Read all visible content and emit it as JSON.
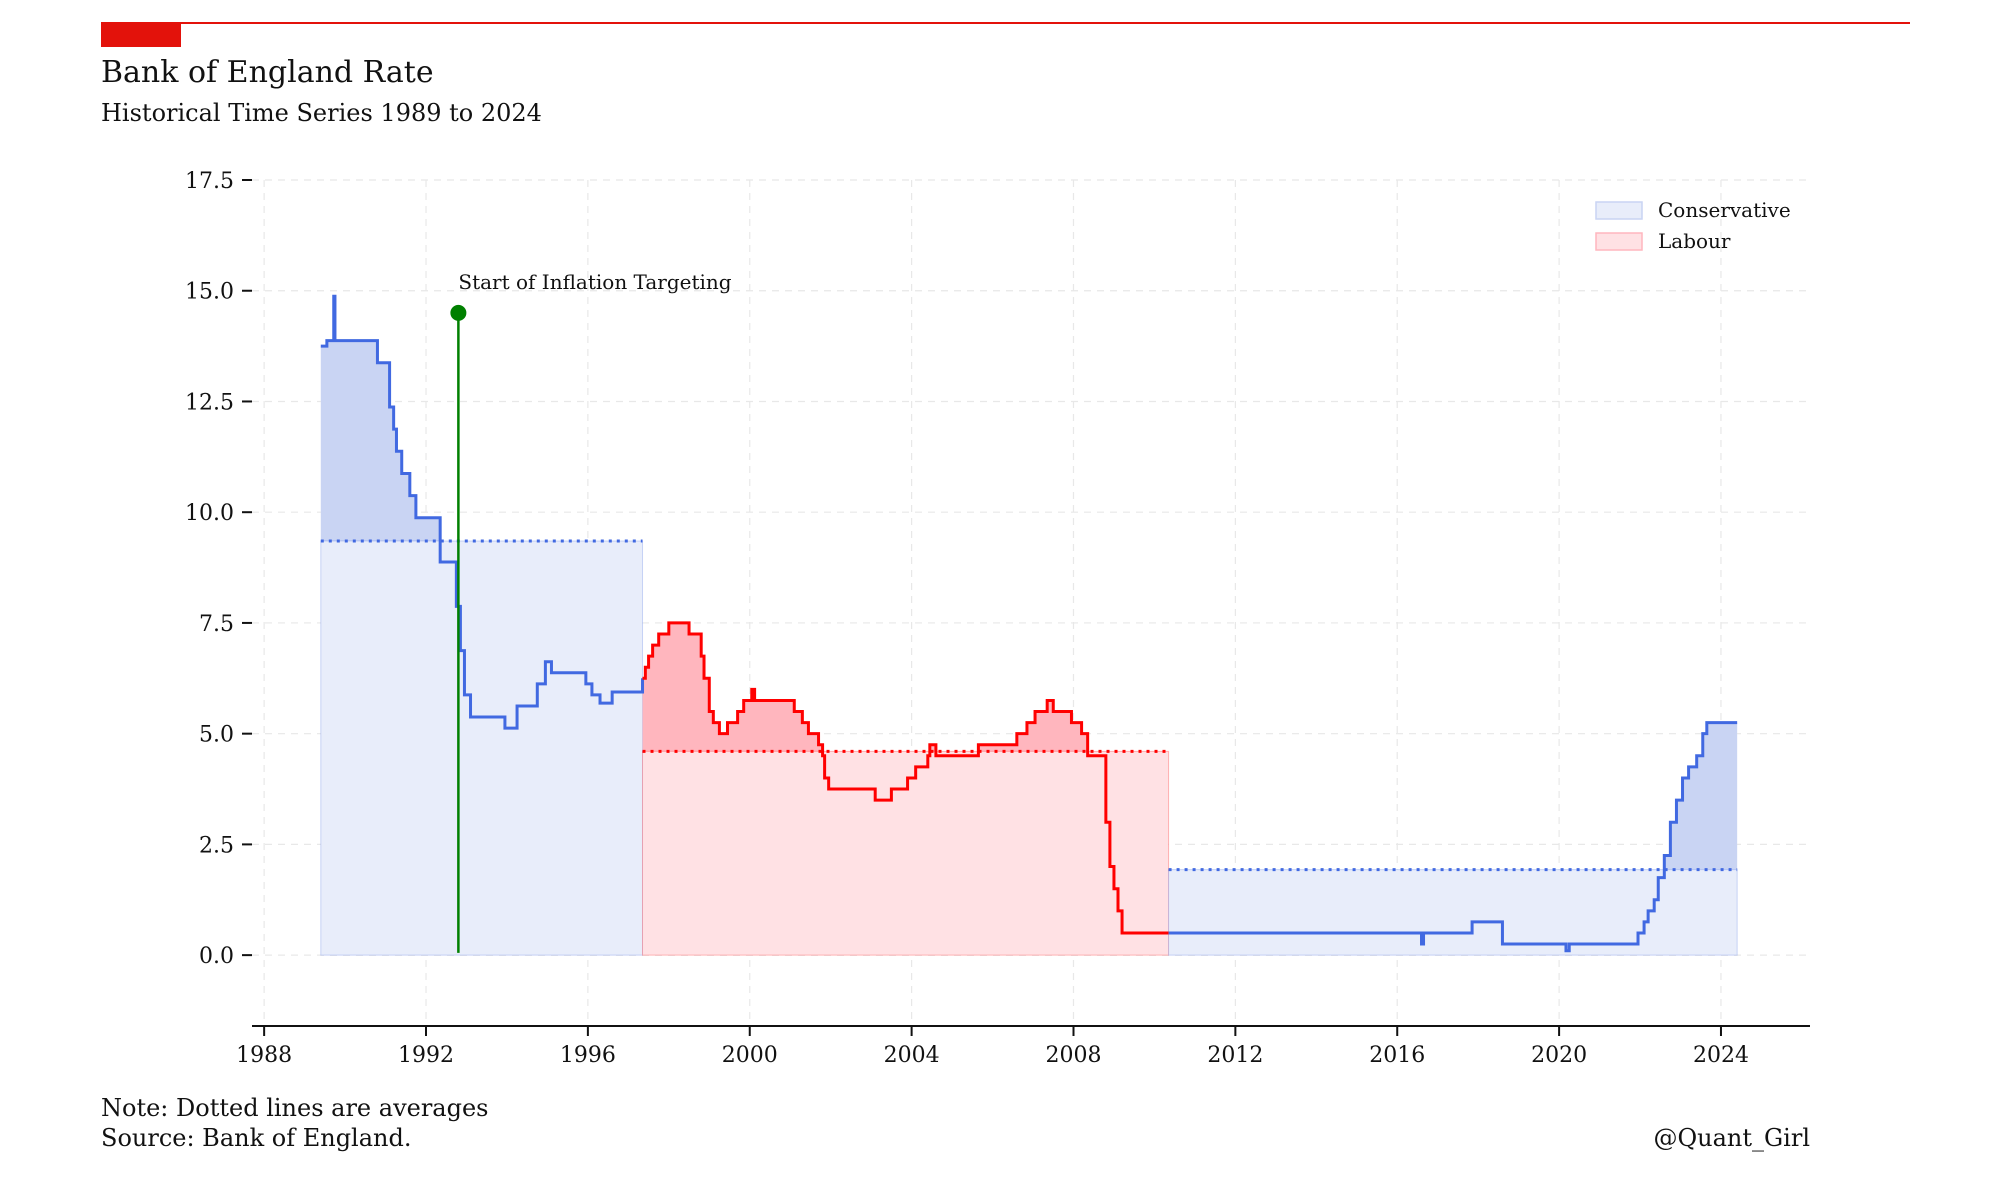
{
  "chart_data": {
    "type": "line",
    "title": "Bank of England Rate",
    "subtitle": "Historical Time Series 1989 to 2024",
    "xlabel": "",
    "ylabel": "",
    "xlim": [
      1987.7,
      2026.2
    ],
    "ylim": [
      -1.6,
      17.5
    ],
    "x_ticks": [
      1988,
      1992,
      1996,
      2000,
      2004,
      2008,
      2012,
      2016,
      2020,
      2024
    ],
    "y_ticks": [
      0.0,
      2.5,
      5.0,
      7.5,
      10.0,
      12.5,
      15.0,
      17.5
    ],
    "y_tick_labels": [
      "0.0",
      "2.5",
      "5.0",
      "7.5",
      "10.0",
      "12.5",
      "15.0",
      "17.5"
    ],
    "grid": true,
    "legend_position": "top-right",
    "legend": [
      {
        "label": "Conservative",
        "color": "#4169E1"
      },
      {
        "label": "Labour",
        "color": "#FF0000"
      }
    ],
    "annotation": {
      "text": "Start of Inflation Targeting",
      "x": 1992.8,
      "y": 14.5,
      "color": "#008000"
    },
    "note": "Note: Dotted lines are averages",
    "source": "Source: Bank of England.",
    "credit": "@Quant_Girl",
    "series": [
      {
        "name": "Conservative",
        "color": "#4169E1",
        "average": 9.35,
        "points": [
          [
            1989.4,
            13.75
          ],
          [
            1989.55,
            13.875
          ],
          [
            1989.72,
            14.875
          ],
          [
            1989.75,
            13.875
          ],
          [
            1990.8,
            13.375
          ],
          [
            1991.1,
            12.375
          ],
          [
            1991.2,
            11.875
          ],
          [
            1991.27,
            11.375
          ],
          [
            1991.4,
            10.875
          ],
          [
            1991.6,
            10.375
          ],
          [
            1991.75,
            9.875
          ],
          [
            1992.35,
            8.875
          ],
          [
            1992.75,
            7.875
          ],
          [
            1992.85,
            6.875
          ],
          [
            1992.95,
            5.875
          ],
          [
            1993.1,
            5.375
          ],
          [
            1993.95,
            5.125
          ],
          [
            1994.25,
            5.625
          ],
          [
            1994.75,
            6.125
          ],
          [
            1994.95,
            6.625
          ],
          [
            1995.1,
            6.375
          ],
          [
            1995.95,
            6.125
          ],
          [
            1996.1,
            5.875
          ],
          [
            1996.3,
            5.69
          ],
          [
            1996.6,
            5.94
          ],
          [
            1997.35,
            6.25
          ]
        ],
        "region_avgs": [
          [
            1989.4,
            1997.35,
            9.35
          ]
        ]
      },
      {
        "name": "Labour",
        "color": "#FF0000",
        "average": 4.6,
        "points": [
          [
            1997.35,
            6.25
          ],
          [
            1997.42,
            6.5
          ],
          [
            1997.5,
            6.75
          ],
          [
            1997.6,
            7.0
          ],
          [
            1997.75,
            7.25
          ],
          [
            1998.0,
            7.5
          ],
          [
            1998.5,
            7.25
          ],
          [
            1998.8,
            6.75
          ],
          [
            1998.87,
            6.25
          ],
          [
            1999.0,
            5.5
          ],
          [
            1999.1,
            5.25
          ],
          [
            1999.25,
            5.0
          ],
          [
            1999.45,
            5.25
          ],
          [
            1999.7,
            5.5
          ],
          [
            1999.85,
            5.75
          ],
          [
            2000.05,
            6.0
          ],
          [
            2000.12,
            5.75
          ],
          [
            2001.1,
            5.5
          ],
          [
            2001.3,
            5.25
          ],
          [
            2001.45,
            5.0
          ],
          [
            2001.7,
            4.75
          ],
          [
            2001.8,
            4.5
          ],
          [
            2001.85,
            4.0
          ],
          [
            2001.95,
            3.75
          ],
          [
            2003.1,
            3.5
          ],
          [
            2003.5,
            3.75
          ],
          [
            2003.9,
            4.0
          ],
          [
            2004.1,
            4.25
          ],
          [
            2004.4,
            4.5
          ],
          [
            2004.45,
            4.75
          ],
          [
            2004.6,
            4.5
          ],
          [
            2005.6,
            4.5
          ],
          [
            2005.65,
            4.75
          ],
          [
            2006.6,
            5.0
          ],
          [
            2006.85,
            5.25
          ],
          [
            2007.05,
            5.5
          ],
          [
            2007.35,
            5.75
          ],
          [
            2007.5,
            5.5
          ],
          [
            2007.95,
            5.25
          ],
          [
            2008.2,
            5.0
          ],
          [
            2008.35,
            4.5
          ],
          [
            2008.8,
            3.0
          ],
          [
            2008.9,
            2.0
          ],
          [
            2009.0,
            1.5
          ],
          [
            2009.1,
            1.0
          ],
          [
            2009.2,
            0.5
          ],
          [
            2010.35,
            0.5
          ]
        ],
        "region_avgs": [
          [
            1997.35,
            2010.35,
            4.6
          ]
        ]
      },
      {
        "name": "Conservative",
        "color": "#4169E1",
        "average": 1.93,
        "points": [
          [
            2010.35,
            0.5
          ],
          [
            2016.6,
            0.25
          ],
          [
            2016.65,
            0.5
          ],
          [
            2017.85,
            0.75
          ],
          [
            2018.6,
            0.25
          ],
          [
            2020.17,
            0.1
          ],
          [
            2020.25,
            0.25
          ],
          [
            2021.95,
            0.5
          ],
          [
            2022.1,
            0.75
          ],
          [
            2022.2,
            1.0
          ],
          [
            2022.35,
            1.25
          ],
          [
            2022.45,
            1.75
          ],
          [
            2022.6,
            2.25
          ],
          [
            2022.75,
            3.0
          ],
          [
            2022.9,
            3.5
          ],
          [
            2023.05,
            4.0
          ],
          [
            2023.2,
            4.25
          ],
          [
            2023.4,
            4.5
          ],
          [
            2023.55,
            5.0
          ],
          [
            2023.65,
            5.25
          ],
          [
            2024.4,
            5.25
          ]
        ],
        "region_avgs": [
          [
            2010.35,
            2024.4,
            1.93
          ]
        ]
      }
    ]
  }
}
